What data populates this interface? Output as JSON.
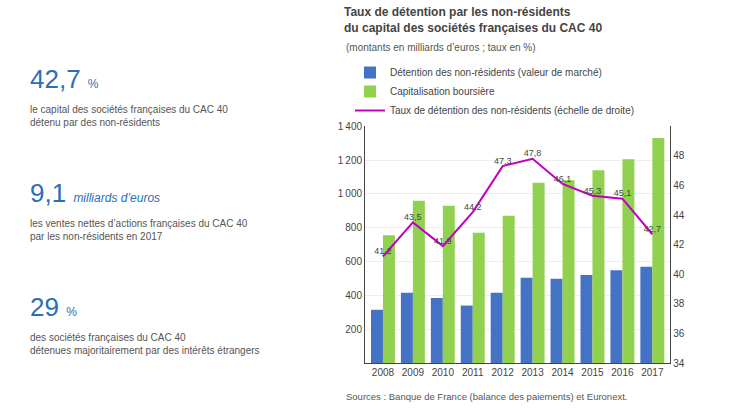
{
  "chart_data": {
    "type": "bar",
    "title": "Taux de détention par les non-résidents\ndu capital des sociétés françaises du CAC 40",
    "subtitle": "(montants en milliards d’euros ; taux en %)",
    "categories": [
      "2008",
      "2009",
      "2010",
      "2011",
      "2012",
      "2013",
      "2014",
      "2015",
      "2016",
      "2017"
    ],
    "series": [
      {
        "name": "Détention des non-résidents (valeur de marché)",
        "type": "bar",
        "color": "#4472c4",
        "values": [
          315,
          415,
          385,
          340,
          415,
          505,
          498,
          520,
          548,
          570
        ]
      },
      {
        "name": "Capitalisation boursière",
        "type": "bar",
        "color": "#92d050",
        "values": [
          755,
          960,
          930,
          770,
          870,
          1065,
          1080,
          1140,
          1205,
          1330
        ]
      },
      {
        "name": "Taux de détention des non-résidents (échelle de droite)",
        "type": "line",
        "axis": "y2",
        "color": "#c000c0",
        "line_style": "solid",
        "data_labels": true,
        "values": [
          41.2,
          43.5,
          41.9,
          44.2,
          47.3,
          47.8,
          46.1,
          45.3,
          45.1,
          42.7
        ],
        "value_labels": [
          "41,2",
          "43,5",
          "41,9",
          "44,2",
          "47,3",
          "47,8",
          "46,1",
          "45,3",
          "45,1",
          "42,7"
        ]
      }
    ],
    "ylim": [
      0,
      1400
    ],
    "yticks": [
      200,
      400,
      600,
      800,
      {
        "value": 1000,
        "label": "1 000"
      },
      {
        "value": 1200,
        "label": "1 200"
      },
      {
        "value": 1400,
        "label": "1 400"
      }
    ],
    "y2lim": [
      34,
      50
    ],
    "y2ticks": [
      34,
      36,
      38,
      40,
      42,
      44,
      46,
      48
    ],
    "grid": true,
    "legend": "top left",
    "annotations": [
      "42,7",
      "%",
      "le capital des sociétés françaises du CAC 40",
      "détenu par des non-résidents",
      "9,1",
      "milliards d’euros",
      "les ventes nettes d’actions françaises du CAC 40",
      "par les non-résidents en 2017",
      "29",
      "%",
      "des sociétés françaises du CAC 40",
      "détenues majoritairement par des intérêts étrangers",
      "Sources : Banque de France (balance des paiements) et Euronext."
    ]
  }
}
